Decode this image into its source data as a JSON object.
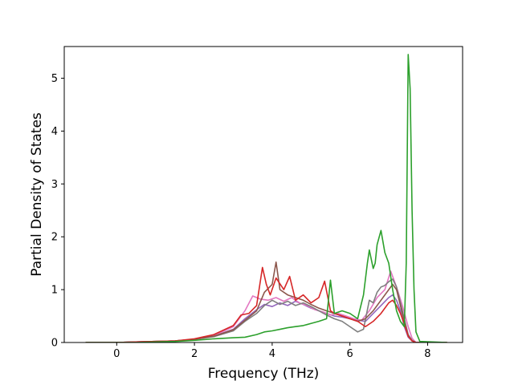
{
  "chart_data": {
    "type": "line",
    "xlabel": "Frequency (THz)",
    "ylabel": "Partial Density of States",
    "xlim": [
      -1.35,
      8.9
    ],
    "ylim": [
      0,
      5.6
    ],
    "xticks": [
      "0",
      "2",
      "4",
      "6",
      "8"
    ],
    "yticks": [
      "0",
      "1",
      "2",
      "3",
      "4",
      "5"
    ],
    "grid": false,
    "legend": "none",
    "series": [
      {
        "color": "#9467bd",
        "x": [
          -0.8,
          0.0,
          0.5,
          1.0,
          1.5,
          2.0,
          2.5,
          3.0,
          3.3,
          3.6,
          3.8,
          4.0,
          4.2,
          4.4,
          4.6,
          4.8,
          5.0,
          5.2,
          5.4,
          5.6,
          5.8,
          6.0,
          6.2,
          6.4,
          6.6,
          6.8,
          7.0,
          7.1,
          7.2,
          7.3,
          7.4,
          7.5,
          7.6,
          7.7,
          8.5
        ],
        "y": [
          0,
          0,
          0.01,
          0.02,
          0.03,
          0.06,
          0.12,
          0.25,
          0.45,
          0.62,
          0.72,
          0.68,
          0.75,
          0.7,
          0.78,
          0.72,
          0.65,
          0.6,
          0.55,
          0.5,
          0.48,
          0.45,
          0.42,
          0.4,
          0.55,
          0.7,
          0.85,
          0.9,
          0.8,
          0.6,
          0.3,
          0.1,
          0.03,
          0.0,
          0.0
        ]
      },
      {
        "color": "#e377c2",
        "x": [
          -0.8,
          0.0,
          0.5,
          1.0,
          1.5,
          2.0,
          2.5,
          3.0,
          3.3,
          3.5,
          3.7,
          3.9,
          4.1,
          4.3,
          4.5,
          4.7,
          4.9,
          5.1,
          5.3,
          5.5,
          5.7,
          5.9,
          6.1,
          6.3,
          6.5,
          6.7,
          6.9,
          7.05,
          7.2,
          7.35,
          7.5,
          7.6,
          7.7,
          8.5
        ],
        "y": [
          0,
          0,
          0.01,
          0.02,
          0.03,
          0.06,
          0.13,
          0.3,
          0.6,
          0.88,
          0.82,
          0.8,
          0.85,
          0.78,
          0.85,
          0.75,
          0.7,
          0.62,
          0.58,
          0.52,
          0.55,
          0.5,
          0.45,
          0.42,
          0.6,
          0.85,
          1.0,
          1.35,
          1.05,
          0.7,
          0.3,
          0.08,
          0.0,
          0.0
        ]
      },
      {
        "color": "#7f7f7f",
        "x": [
          -0.8,
          0.0,
          0.5,
          1.0,
          1.5,
          2.0,
          2.5,
          3.0,
          3.3,
          3.6,
          3.8,
          4.0,
          4.2,
          4.4,
          4.6,
          4.8,
          5.0,
          5.2,
          5.4,
          5.6,
          5.8,
          6.0,
          6.2,
          6.35,
          6.5,
          6.6,
          6.7,
          6.8,
          6.9,
          7.0,
          7.1,
          7.2,
          7.3,
          7.4,
          7.5,
          7.6,
          7.7,
          8.5
        ],
        "y": [
          0,
          0,
          0.01,
          0.02,
          0.03,
          0.06,
          0.11,
          0.22,
          0.4,
          0.55,
          0.7,
          0.8,
          0.72,
          0.78,
          0.7,
          0.75,
          0.68,
          0.6,
          0.52,
          0.45,
          0.4,
          0.3,
          0.2,
          0.25,
          0.8,
          0.75,
          0.95,
          1.05,
          1.08,
          1.15,
          1.2,
          1.05,
          0.75,
          0.45,
          0.15,
          0.04,
          0.0,
          0.0
        ]
      },
      {
        "color": "#8c564b",
        "x": [
          -0.8,
          0.0,
          0.5,
          1.0,
          1.5,
          2.0,
          2.5,
          3.0,
          3.3,
          3.6,
          3.8,
          4.0,
          4.1,
          4.2,
          4.4,
          4.6,
          4.8,
          5.0,
          5.2,
          5.4,
          5.6,
          5.8,
          6.0,
          6.2,
          6.4,
          6.6,
          6.8,
          7.0,
          7.1,
          7.2,
          7.3,
          7.4,
          7.5,
          7.6,
          7.7,
          8.5
        ],
        "y": [
          0,
          0,
          0.01,
          0.02,
          0.03,
          0.06,
          0.12,
          0.24,
          0.42,
          0.6,
          0.95,
          1.1,
          1.52,
          1.0,
          0.9,
          0.85,
          0.8,
          0.72,
          0.65,
          0.6,
          0.55,
          0.5,
          0.45,
          0.4,
          0.45,
          0.6,
          0.8,
          1.0,
          1.1,
          1.0,
          0.7,
          0.4,
          0.12,
          0.03,
          0.0,
          0.0
        ]
      },
      {
        "color": "#d62728",
        "x": [
          -0.8,
          0.0,
          0.5,
          1.0,
          1.5,
          2.0,
          2.5,
          3.0,
          3.2,
          3.4,
          3.6,
          3.75,
          3.85,
          3.95,
          4.1,
          4.3,
          4.45,
          4.6,
          4.8,
          5.0,
          5.2,
          5.35,
          5.5,
          5.6,
          5.8,
          6.0,
          6.2,
          6.4,
          6.6,
          6.8,
          7.0,
          7.1,
          7.2,
          7.3,
          7.4,
          7.5,
          7.6,
          7.7,
          8.5
        ],
        "y": [
          0,
          0,
          0.01,
          0.02,
          0.03,
          0.07,
          0.15,
          0.32,
          0.52,
          0.55,
          0.7,
          1.42,
          1.1,
          0.9,
          1.22,
          1.0,
          1.25,
          0.8,
          0.9,
          0.75,
          0.85,
          1.16,
          0.6,
          0.55,
          0.5,
          0.45,
          0.4,
          0.3,
          0.4,
          0.55,
          0.75,
          0.8,
          0.7,
          0.55,
          0.35,
          0.12,
          0.03,
          0.0,
          0.0
        ]
      },
      {
        "color": "#2ca02c",
        "x": [
          -0.8,
          0.0,
          0.5,
          1.0,
          1.5,
          2.0,
          2.5,
          3.0,
          3.3,
          3.6,
          3.8,
          4.0,
          4.2,
          4.4,
          4.6,
          4.8,
          5.0,
          5.2,
          5.4,
          5.5,
          5.6,
          5.8,
          6.0,
          6.2,
          6.35,
          6.45,
          6.5,
          6.6,
          6.65,
          6.7,
          6.8,
          6.9,
          7.0,
          7.1,
          7.2,
          7.3,
          7.4,
          7.45,
          7.5,
          7.55,
          7.6,
          7.65,
          7.7,
          7.8,
          8.5
        ],
        "y": [
          0,
          0,
          0.0,
          0.01,
          0.02,
          0.04,
          0.07,
          0.09,
          0.1,
          0.15,
          0.2,
          0.22,
          0.25,
          0.28,
          0.3,
          0.32,
          0.36,
          0.4,
          0.45,
          1.18,
          0.55,
          0.6,
          0.55,
          0.45,
          0.9,
          1.5,
          1.75,
          1.4,
          1.5,
          1.85,
          2.12,
          1.7,
          1.5,
          1.0,
          0.6,
          0.4,
          0.3,
          1.5,
          5.45,
          4.8,
          2.5,
          1.0,
          0.2,
          0.02,
          0.0
        ]
      }
    ]
  }
}
